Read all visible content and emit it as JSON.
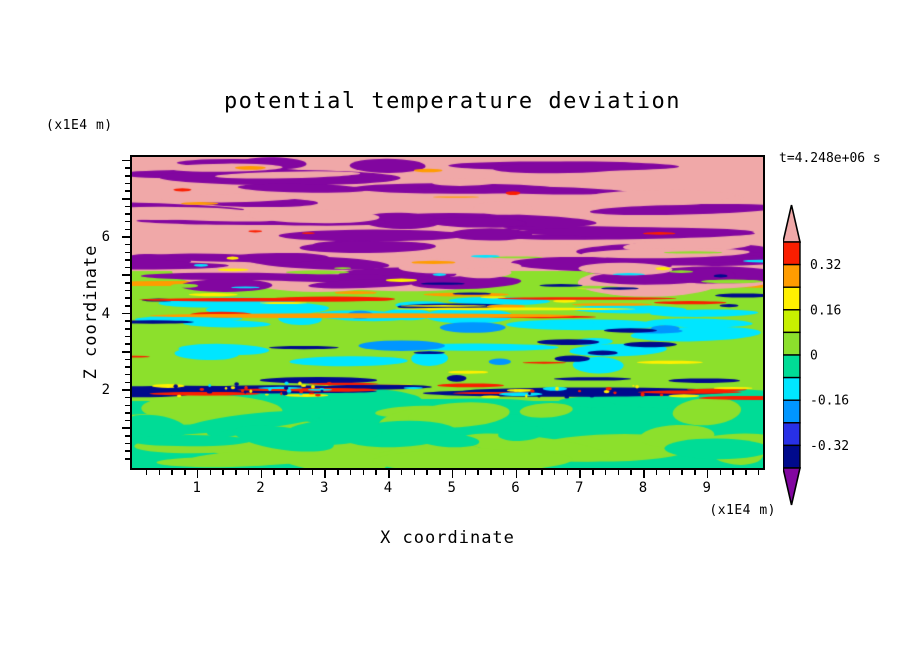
{
  "title": "potential temperature deviation",
  "timestamp": "t=4.248e+06 s",
  "axes": {
    "x": {
      "label": "X coordinate",
      "unit": "(x1E4 m)",
      "ticks": [
        1,
        2,
        3,
        4,
        5,
        6,
        7,
        8,
        9
      ]
    },
    "z": {
      "label": "Z coordinate",
      "unit": "(x1E4 m)",
      "ticks": [
        2,
        4,
        6
      ]
    }
  },
  "colorbar": {
    "labels": [
      "0.32",
      "0.16",
      "0",
      "-0.16",
      "-0.32"
    ],
    "levels": [
      0.4,
      0.32,
      0.24,
      0.16,
      0.08,
      0,
      -0.08,
      -0.16,
      -0.24,
      -0.32,
      -0.4
    ],
    "segment_colors": [
      "#FA1E00",
      "#FF9C00",
      "#FFF000",
      "#C8F000",
      "#8CE02C",
      "#00DC96",
      "#00E6FF",
      "#0096FF",
      "#2830E6",
      "#000A8C"
    ],
    "over_color": "#F0A8A8",
    "under_color": "#8206A0"
  },
  "palette": {
    "pink": "#F0A8A8",
    "purple": "#8206A0",
    "red": "#FA1E00",
    "orange": "#FF9C00",
    "yellow": "#FFF000",
    "yellow_green": "#C8F000",
    "chartreuse": "#8CE02C",
    "spring_green": "#00DC96",
    "cyan": "#00E6FF",
    "sky_blue": "#0096FF",
    "blue": "#2830E6",
    "navy": "#000A8C"
  },
  "chart_data": {
    "type": "heatmap",
    "title": "potential temperature deviation",
    "xlabel": "X coordinate",
    "ylabel": "Z coordinate",
    "axis_unit": "(x1E4 m)",
    "time_annotation": "t=4.248e+06 s",
    "x_ticks": [
      1,
      2,
      3,
      4,
      5,
      6,
      7,
      8,
      9
    ],
    "z_ticks": [
      2,
      4,
      6
    ],
    "x_range": [
      0,
      10
    ],
    "z_range": [
      0,
      8.2
    ],
    "contour_levels": [
      -0.4,
      -0.32,
      -0.24,
      -0.16,
      -0.08,
      0,
      0.08,
      0.16,
      0.24,
      0.32,
      0.4
    ],
    "colorbar_tick_labels": [
      "0.32",
      "0.16",
      "0",
      "-0.16",
      "-0.32"
    ],
    "colorbar_position": "right",
    "field_structure": [
      {
        "z_range": [
          4.6,
          8.2
        ],
        "description": "Wave layer: alternating horizontal streaks of pink (deviation > +0.4) and purple (deviation < -0.4)"
      },
      {
        "z_range": [
          4.0,
          4.8
        ],
        "description": "Transition band: thin red/orange/yellow positive streaks over chartreuse background"
      },
      {
        "z_range": [
          2.2,
          4.2
        ],
        "description": "Chartreuse layer (0 to +0.08) with cyan patches (-0.08 to -0.16) and thin navy filaments"
      },
      {
        "z_range": [
          1.8,
          2.2
        ],
        "description": "Shear band at z=2: long navy streaks (< -0.32) rimmed by thin red and yellow filaments with speckled mixing dots"
      },
      {
        "z_range": [
          0,
          1.9
        ],
        "description": "Well-mixed lower layer: spring green (-0.08 to 0) with large chartreuse swirls"
      }
    ]
  }
}
